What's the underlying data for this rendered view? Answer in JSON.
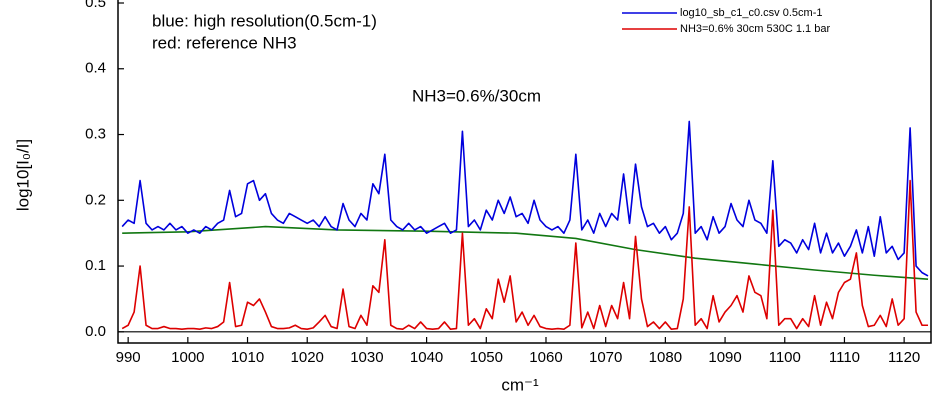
{
  "chart_data": {
    "type": "line",
    "annotations": [
      "blue: high resolution(0.5cm-1)",
      "red: reference NH3",
      "NH3=0.6%/30cm"
    ],
    "x_label": "cm⁻¹",
    "y_label": "log10[I₀/I]",
    "xlim": [
      988.3,
      1124.5
    ],
    "ylim": [
      -0.017,
      0.5
    ],
    "xticks": [
      990,
      1000,
      1010,
      1020,
      1030,
      1040,
      1050,
      1060,
      1070,
      1080,
      1090,
      1100,
      1110,
      1120
    ],
    "yticks": [
      {
        "value": 0,
        "label": "0.0"
      },
      0.1,
      0.2,
      0.3,
      0.4,
      0.5
    ],
    "legend": "upper right",
    "x": [
      989,
      990,
      991,
      992,
      993,
      994,
      995,
      996,
      997,
      998,
      999,
      1000,
      1001,
      1002,
      1003,
      1004,
      1005,
      1006,
      1007,
      1008,
      1009,
      1010,
      1011,
      1012,
      1013,
      1014,
      1015,
      1016,
      1017,
      1018,
      1019,
      1020,
      1021,
      1022,
      1023,
      1024,
      1025,
      1026,
      1027,
      1028,
      1029,
      1030,
      1031,
      1032,
      1033,
      1034,
      1035,
      1036,
      1037,
      1038,
      1039,
      1040,
      1041,
      1042,
      1043,
      1044,
      1045,
      1046,
      1047,
      1048,
      1049,
      1050,
      1051,
      1052,
      1053,
      1054,
      1055,
      1056,
      1057,
      1058,
      1059,
      1060,
      1061,
      1062,
      1063,
      1064,
      1065,
      1066,
      1067,
      1068,
      1069,
      1070,
      1071,
      1072,
      1073,
      1074,
      1075,
      1076,
      1077,
      1078,
      1079,
      1080,
      1081,
      1082,
      1083,
      1084,
      1085,
      1086,
      1087,
      1088,
      1089,
      1090,
      1091,
      1092,
      1093,
      1094,
      1095,
      1096,
      1097,
      1098,
      1099,
      1100,
      1101,
      1102,
      1103,
      1104,
      1105,
      1106,
      1107,
      1108,
      1109,
      1110,
      1111,
      1112,
      1113,
      1114,
      1115,
      1116,
      1117,
      1118,
      1119,
      1120,
      1121,
      1122,
      1123,
      1124
    ],
    "series": [
      {
        "name": "log10_sb_c1_c0.csv 0.5cm-1",
        "color": "#0000dd",
        "values": [
          0.16,
          0.17,
          0.165,
          0.23,
          0.165,
          0.155,
          0.16,
          0.155,
          0.165,
          0.155,
          0.16,
          0.15,
          0.155,
          0.15,
          0.16,
          0.155,
          0.165,
          0.17,
          0.215,
          0.175,
          0.18,
          0.225,
          0.23,
          0.2,
          0.21,
          0.18,
          0.17,
          0.165,
          0.18,
          0.175,
          0.17,
          0.165,
          0.17,
          0.16,
          0.175,
          0.16,
          0.155,
          0.195,
          0.17,
          0.16,
          0.18,
          0.17,
          0.225,
          0.21,
          0.27,
          0.17,
          0.16,
          0.155,
          0.165,
          0.155,
          0.16,
          0.15,
          0.155,
          0.16,
          0.165,
          0.15,
          0.155,
          0.305,
          0.16,
          0.17,
          0.155,
          0.185,
          0.17,
          0.2,
          0.18,
          0.205,
          0.175,
          0.18,
          0.165,
          0.2,
          0.17,
          0.16,
          0.155,
          0.16,
          0.15,
          0.17,
          0.27,
          0.155,
          0.17,
          0.15,
          0.18,
          0.16,
          0.18,
          0.17,
          0.24,
          0.165,
          0.255,
          0.19,
          0.16,
          0.165,
          0.15,
          0.16,
          0.14,
          0.15,
          0.18,
          0.32,
          0.15,
          0.16,
          0.14,
          0.175,
          0.15,
          0.16,
          0.195,
          0.17,
          0.16,
          0.2,
          0.17,
          0.165,
          0.15,
          0.26,
          0.13,
          0.14,
          0.135,
          0.12,
          0.14,
          0.125,
          0.165,
          0.12,
          0.15,
          0.12,
          0.135,
          0.115,
          0.13,
          0.155,
          0.12,
          0.16,
          0.115,
          0.175,
          0.12,
          0.13,
          0.11,
          0.12,
          0.31,
          0.1,
          0.09,
          0.085
        ]
      },
      {
        "name": "NH3=0.6% 30cm 530C 1.1 bar",
        "color": "#dd0000",
        "values": [
          0.005,
          0.01,
          0.03,
          0.1,
          0.01,
          0.005,
          0.005,
          0.008,
          0.005,
          0.005,
          0.004,
          0.005,
          0.005,
          0.004,
          0.006,
          0.005,
          0.008,
          0.015,
          0.075,
          0.008,
          0.01,
          0.045,
          0.04,
          0.05,
          0.03,
          0.008,
          0.005,
          0.005,
          0.006,
          0.01,
          0.005,
          0.004,
          0.006,
          0.015,
          0.025,
          0.008,
          0.005,
          0.065,
          0.008,
          0.005,
          0.025,
          0.01,
          0.07,
          0.06,
          0.14,
          0.01,
          0.005,
          0.004,
          0.01,
          0.005,
          0.015,
          0.005,
          0.004,
          0.005,
          0.015,
          0.004,
          0.005,
          0.15,
          0.01,
          0.02,
          0.005,
          0.035,
          0.02,
          0.08,
          0.045,
          0.085,
          0.015,
          0.03,
          0.01,
          0.025,
          0.008,
          0.005,
          0.004,
          0.005,
          0.004,
          0.01,
          0.135,
          0.006,
          0.03,
          0.005,
          0.04,
          0.008,
          0.04,
          0.02,
          0.075,
          0.02,
          0.145,
          0.05,
          0.008,
          0.015,
          0.005,
          0.015,
          0.004,
          0.005,
          0.05,
          0.19,
          0.01,
          0.02,
          0.005,
          0.055,
          0.015,
          0.03,
          0.04,
          0.055,
          0.03,
          0.085,
          0.06,
          0.055,
          0.02,
          0.185,
          0.01,
          0.02,
          0.02,
          0.005,
          0.02,
          0.008,
          0.055,
          0.01,
          0.045,
          0.02,
          0.06,
          0.075,
          0.08,
          0.12,
          0.04,
          0.008,
          0.01,
          0.025,
          0.008,
          0.05,
          0.01,
          0.02,
          0.23,
          0.03,
          0.01,
          0.01
        ]
      },
      {
        "color": "#117711",
        "x": [
          989,
          1000,
          1013,
          1025,
          1040,
          1055,
          1065,
          1075,
          1085,
          1095,
          1105,
          1115,
          1124
        ],
        "values": [
          0.15,
          0.152,
          0.16,
          0.155,
          0.153,
          0.15,
          0.142,
          0.125,
          0.112,
          0.103,
          0.094,
          0.086,
          0.08
        ]
      }
    ]
  }
}
